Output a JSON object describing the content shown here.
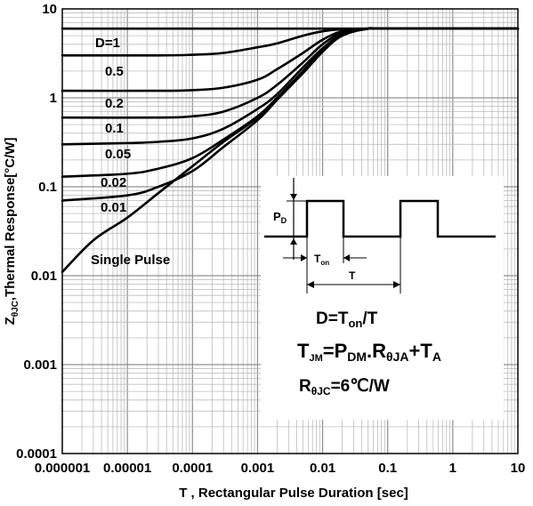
{
  "chart_data": {
    "type": "line",
    "x_scale": "log",
    "y_scale": "log",
    "xlim": [
      1e-06,
      10
    ],
    "ylim": [
      0.0001,
      10
    ],
    "x_ticks": [
      "0.000001",
      "0.00001",
      "0.0001",
      "0.001",
      "0.01",
      "0.1",
      "1",
      "10"
    ],
    "y_ticks": [
      "0.0001",
      "0.001",
      "0.01",
      "0.1",
      "1",
      "10"
    ],
    "xlabel": "T , Rectangular Pulse Duration [sec]",
    "ylabel_parts": [
      "Z",
      "θJC",
      ",Thermal Response[",
      "°C/W]"
    ],
    "grid": true,
    "series": [
      {
        "name": "D=1",
        "x": [
          1e-06,
          10
        ],
        "y": [
          6,
          6
        ]
      },
      {
        "name": "0.5",
        "x": [
          1e-06,
          3e-05,
          0.0001,
          0.0003,
          0.001,
          0.002,
          0.005,
          0.01,
          0.02,
          0.05,
          0.1,
          10
        ],
        "y": [
          3.0,
          3.0,
          3.05,
          3.2,
          3.7,
          4.1,
          5.0,
          5.6,
          5.9,
          6.0,
          6.0,
          6.0
        ]
      },
      {
        "name": "0.2",
        "x": [
          1e-06,
          3e-05,
          0.0001,
          0.0003,
          0.001,
          0.002,
          0.005,
          0.01,
          0.02,
          0.05,
          0.1,
          10
        ],
        "y": [
          1.2,
          1.2,
          1.22,
          1.3,
          1.6,
          2.1,
          3.2,
          4.5,
          5.6,
          6.0,
          6.0,
          6.0
        ]
      },
      {
        "name": "0.1",
        "x": [
          1e-06,
          3e-05,
          0.0001,
          0.0003,
          0.001,
          0.002,
          0.005,
          0.01,
          0.02,
          0.05,
          0.1,
          10
        ],
        "y": [
          0.6,
          0.6,
          0.62,
          0.7,
          1.0,
          1.4,
          2.5,
          4.0,
          5.4,
          6.0,
          6.0,
          6.0
        ]
      },
      {
        "name": "0.05",
        "x": [
          1e-06,
          1e-05,
          3e-05,
          0.0001,
          0.0003,
          0.001,
          0.002,
          0.005,
          0.01,
          0.02,
          0.05,
          0.1,
          10
        ],
        "y": [
          0.3,
          0.31,
          0.32,
          0.35,
          0.45,
          0.75,
          1.1,
          2.2,
          3.6,
          5.2,
          6.0,
          6.0,
          6.0
        ]
      },
      {
        "name": "0.02",
        "x": [
          1e-06,
          1e-05,
          3e-05,
          0.0001,
          0.0003,
          0.001,
          0.002,
          0.005,
          0.01,
          0.02,
          0.05,
          0.1,
          10
        ],
        "y": [
          0.13,
          0.14,
          0.16,
          0.21,
          0.34,
          0.62,
          1.0,
          2.0,
          3.4,
          5.1,
          6.0,
          6.0,
          6.0
        ]
      },
      {
        "name": "0.01",
        "x": [
          1e-06,
          1e-05,
          3e-05,
          0.0001,
          0.0003,
          0.001,
          0.002,
          0.005,
          0.01,
          0.02,
          0.05,
          0.1,
          10
        ],
        "y": [
          0.07,
          0.08,
          0.1,
          0.15,
          0.28,
          0.56,
          0.95,
          1.9,
          3.3,
          5.0,
          6.0,
          6.0,
          6.0
        ]
      },
      {
        "name": "Single Pulse",
        "x": [
          1e-06,
          3e-06,
          1e-05,
          3e-05,
          0.0001,
          0.0003,
          0.001,
          0.002,
          0.005,
          0.01,
          0.02,
          0.05,
          0.1,
          10
        ],
        "y": [
          0.011,
          0.025,
          0.045,
          0.085,
          0.17,
          0.32,
          0.6,
          1.0,
          1.9,
          3.3,
          5.0,
          6.0,
          6.0,
          6.0
        ]
      }
    ],
    "inset": {
      "pd_label": [
        "P",
        "D"
      ],
      "ton_label": [
        "T",
        "on"
      ],
      "t_label": "T",
      "formula1": [
        "D=T",
        "on",
        "/T"
      ],
      "formula2": [
        "T",
        "JM",
        "=P",
        "DM",
        ".R",
        "θJA",
        "+T",
        "A"
      ],
      "formula3": [
        "R",
        "θJC",
        "=6℃/W"
      ]
    }
  }
}
